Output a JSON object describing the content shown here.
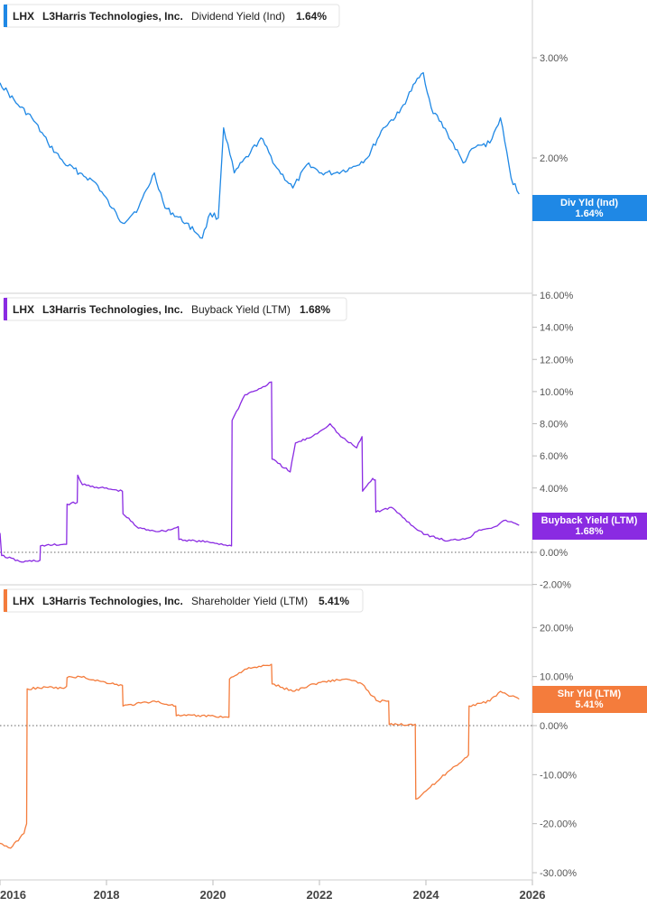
{
  "chart_data": [
    {
      "type": "line",
      "title": "",
      "legend": {
        "ticker": "LHX",
        "company": "L3Harris Technologies, Inc.",
        "metric": "Dividend Yield (Ind)",
        "value": "1.64%"
      },
      "tag": {
        "label": "Div Yld (Ind)",
        "value": "1.64%"
      },
      "color": "#1f88e5",
      "ylim": [
        1.0,
        3.5
      ],
      "yticks": [
        2.0,
        3.0
      ],
      "ytick_labels": [
        "2.00%",
        "3.00%"
      ],
      "zero_line": false,
      "x": [
        2016.0,
        2016.3,
        2016.6,
        2016.9,
        2017.2,
        2017.5,
        2017.8,
        2018.1,
        2018.3,
        2018.6,
        2018.9,
        2019.1,
        2019.5,
        2019.8,
        2019.95,
        2020.1,
        2020.2,
        2020.4,
        2020.7,
        2020.9,
        2021.2,
        2021.5,
        2021.8,
        2022.0,
        2022.3,
        2022.6,
        2022.9,
        2023.2,
        2023.5,
        2023.8,
        2023.95,
        2024.1,
        2024.4,
        2024.7,
        2024.9,
        2025.2,
        2025.4,
        2025.6,
        2025.75
      ],
      "y": [
        2.75,
        2.55,
        2.4,
        2.15,
        1.95,
        1.85,
        1.75,
        1.5,
        1.35,
        1.5,
        1.85,
        1.5,
        1.35,
        1.2,
        1.45,
        1.4,
        2.3,
        1.85,
        2.05,
        2.2,
        1.9,
        1.7,
        1.95,
        1.85,
        1.85,
        1.9,
        2.0,
        2.3,
        2.45,
        2.75,
        2.85,
        2.5,
        2.25,
        1.95,
        2.1,
        2.15,
        2.4,
        1.8,
        1.64
      ]
    },
    {
      "type": "line",
      "title": "",
      "legend": {
        "ticker": "LHX",
        "company": "L3Harris Technologies, Inc.",
        "metric": "Buyback Yield (LTM)",
        "value": "1.68%"
      },
      "tag": {
        "label": "Buyback Yield (LTM)",
        "value": "1.68%"
      },
      "color": "#8a2be2",
      "ylim": [
        -2.0,
        16.0
      ],
      "yticks": [
        -2.0,
        0.0,
        2.0,
        4.0,
        6.0,
        8.0,
        10.0,
        12.0,
        14.0,
        16.0
      ],
      "ytick_labels": [
        "-2.00%",
        "0.00%",
        "2.00%",
        "4.00%",
        "6.00%",
        "8.00%",
        "10.00%",
        "12.00%",
        "14.00%",
        "16.00%"
      ],
      "zero_line": true,
      "x": [
        2016.0,
        2016.03,
        2016.4,
        2016.75,
        2016.76,
        2017.25,
        2017.26,
        2017.45,
        2017.46,
        2017.55,
        2018.3,
        2018.31,
        2018.6,
        2019.0,
        2019.2,
        2019.35,
        2019.36,
        2020.0,
        2020.35,
        2020.36,
        2020.6,
        2020.9,
        2021.1,
        2021.11,
        2021.45,
        2021.55,
        2021.8,
        2022.0,
        2022.2,
        2022.4,
        2022.7,
        2022.8,
        2022.81,
        2023.0,
        2023.05,
        2023.06,
        2023.35,
        2023.6,
        2023.8,
        2024.0,
        2024.4,
        2024.8,
        2025.0,
        2025.3,
        2025.5,
        2025.75
      ],
      "y": [
        1.2,
        -0.2,
        -0.6,
        -0.5,
        0.4,
        0.5,
        3.0,
        3.1,
        4.8,
        4.2,
        3.8,
        2.4,
        1.5,
        1.3,
        1.4,
        1.6,
        0.8,
        0.6,
        0.4,
        8.2,
        9.8,
        10.2,
        10.6,
        5.8,
        5.0,
        6.8,
        7.1,
        7.5,
        8.0,
        7.2,
        6.5,
        7.2,
        3.8,
        4.6,
        4.5,
        2.5,
        2.8,
        2.1,
        1.5,
        1.1,
        0.7,
        0.9,
        1.4,
        1.6,
        2.0,
        1.68
      ]
    },
    {
      "type": "line",
      "title": "",
      "legend": {
        "ticker": "LHX",
        "company": "L3Harris Technologies, Inc.",
        "metric": "Shareholder Yield (LTM)",
        "value": "5.41%"
      },
      "tag": {
        "label": "Shr Yld (LTM)",
        "value": "5.41%"
      },
      "color": "#f47c3c",
      "ylim": [
        -30.0,
        25.0
      ],
      "yticks": [
        -30.0,
        -20.0,
        -10.0,
        0.0,
        10.0,
        20.0
      ],
      "ytick_labels": [
        "-30.00%",
        "-20.00%",
        "-10.00%",
        "0.00%",
        "10.00%",
        "20.00%"
      ],
      "zero_line": true,
      "x": [
        2016.0,
        2016.2,
        2016.45,
        2016.5,
        2016.51,
        2016.9,
        2017.2,
        2017.25,
        2017.26,
        2017.5,
        2017.9,
        2018.3,
        2018.31,
        2018.9,
        2019.2,
        2019.3,
        2019.31,
        2019.95,
        2020.3,
        2020.31,
        2020.6,
        2020.9,
        2021.1,
        2021.11,
        2021.5,
        2021.9,
        2022.1,
        2022.5,
        2022.8,
        2023.0,
        2023.1,
        2023.3,
        2023.31,
        2023.8,
        2023.81,
        2024.2,
        2024.4,
        2024.7,
        2024.8,
        2024.81,
        2025.2,
        2025.4,
        2025.6,
        2025.75
      ],
      "y": [
        -24.0,
        -25.0,
        -22.0,
        -20.0,
        7.5,
        7.8,
        7.6,
        8.0,
        9.8,
        10.0,
        9.0,
        8.2,
        4.0,
        5.0,
        4.2,
        4.0,
        2.0,
        2.0,
        1.7,
        9.5,
        11.5,
        12.0,
        12.5,
        8.5,
        7.0,
        8.5,
        9.0,
        9.5,
        8.5,
        6.0,
        5.0,
        5.0,
        0.2,
        0.3,
        -15.0,
        -11.5,
        -9.5,
        -7.0,
        -6.0,
        4.0,
        5.0,
        7.0,
        6.0,
        5.41
      ]
    }
  ],
  "x_axis": {
    "xlim": [
      2016.0,
      2026.0
    ],
    "ticks": [
      2016,
      2018,
      2020,
      2022,
      2024,
      2026
    ],
    "labels": [
      "2016",
      "2018",
      "2020",
      "2022",
      "2024",
      "2026"
    ]
  }
}
